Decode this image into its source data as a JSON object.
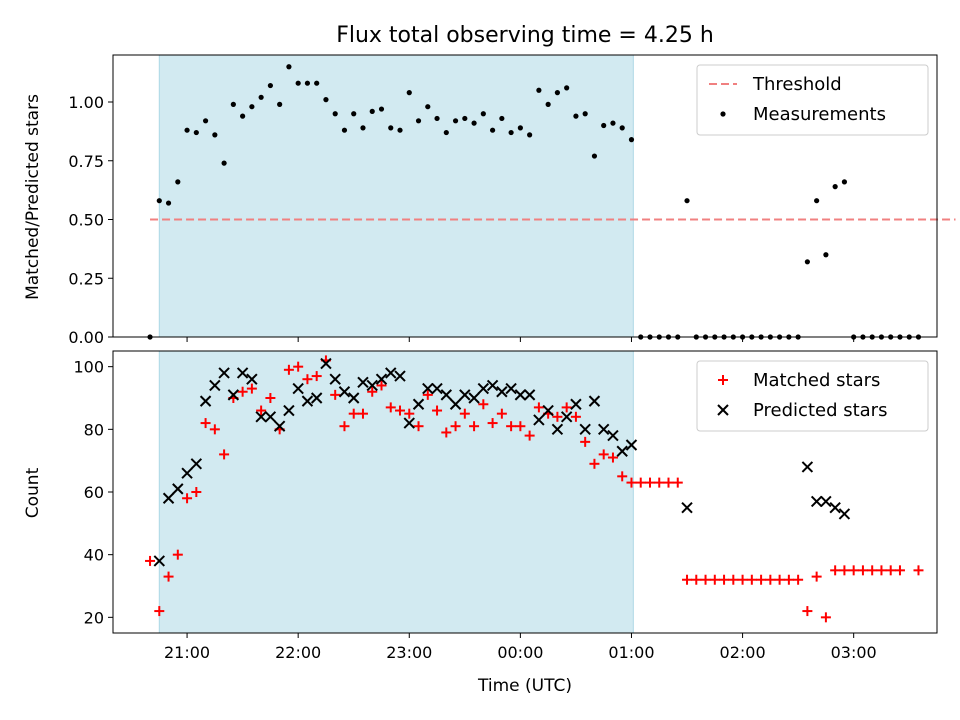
{
  "chart_data": {
    "title": "Flux total observing time = 4.25 h",
    "xlabel": "Time (UTC)",
    "x_ticks": [
      "21:00",
      "22:00",
      "23:00",
      "00:00",
      "01:00",
      "02:00",
      "03:00"
    ],
    "shaded_span": {
      "start": "20:45",
      "end": "01:01",
      "color": "#add8e6"
    },
    "grid": false,
    "panels": [
      {
        "type": "scatter",
        "ylabel": "Matched/Predicted stars",
        "ylim": [
          0,
          1.2
        ],
        "y_ticks": [
          "0.00",
          "0.25",
          "0.50",
          "0.75",
          "1.00"
        ],
        "legend_position": "top-right",
        "threshold": {
          "name": "Threshold",
          "value": 0.5,
          "x_range": [
            "20:40",
            "03:55"
          ],
          "color": "#f08080"
        },
        "series": [
          {
            "name": "Measurements",
            "color": "#000000",
            "points": [
              [
                "20:40",
                0.0
              ],
              [
                "20:45",
                0.58
              ],
              [
                "20:50",
                0.57
              ],
              [
                "20:55",
                0.66
              ],
              [
                "21:00",
                0.88
              ],
              [
                "21:05",
                0.87
              ],
              [
                "21:10",
                0.92
              ],
              [
                "21:15",
                0.86
              ],
              [
                "21:20",
                0.74
              ],
              [
                "21:25",
                0.99
              ],
              [
                "21:30",
                0.94
              ],
              [
                "21:35",
                0.98
              ],
              [
                "21:40",
                1.02
              ],
              [
                "21:45",
                1.07
              ],
              [
                "21:50",
                0.99
              ],
              [
                "21:55",
                1.15
              ],
              [
                "22:00",
                1.08
              ],
              [
                "22:05",
                1.08
              ],
              [
                "22:10",
                1.08
              ],
              [
                "22:15",
                1.01
              ],
              [
                "22:20",
                0.95
              ],
              [
                "22:25",
                0.88
              ],
              [
                "22:30",
                0.95
              ],
              [
                "22:35",
                0.89
              ],
              [
                "22:40",
                0.96
              ],
              [
                "22:45",
                0.97
              ],
              [
                "22:50",
                0.89
              ],
              [
                "22:55",
                0.88
              ],
              [
                "23:00",
                1.04
              ],
              [
                "23:05",
                0.92
              ],
              [
                "23:10",
                0.98
              ],
              [
                "23:15",
                0.93
              ],
              [
                "23:20",
                0.87
              ],
              [
                "23:25",
                0.92
              ],
              [
                "23:30",
                0.93
              ],
              [
                "23:35",
                0.91
              ],
              [
                "23:40",
                0.95
              ],
              [
                "23:45",
                0.88
              ],
              [
                "23:50",
                0.93
              ],
              [
                "23:55",
                0.87
              ],
              [
                "00:00",
                0.89
              ],
              [
                "00:05",
                0.86
              ],
              [
                "00:10",
                1.05
              ],
              [
                "00:15",
                0.99
              ],
              [
                "00:20",
                1.04
              ],
              [
                "00:25",
                1.06
              ],
              [
                "00:30",
                0.94
              ],
              [
                "00:35",
                0.95
              ],
              [
                "00:40",
                0.77
              ],
              [
                "00:45",
                0.9
              ],
              [
                "00:50",
                0.91
              ],
              [
                "00:55",
                0.89
              ],
              [
                "01:00",
                0.84
              ],
              [
                "01:05",
                0.0
              ],
              [
                "01:10",
                0.0
              ],
              [
                "01:15",
                0.0
              ],
              [
                "01:20",
                0.0
              ],
              [
                "01:25",
                0.0
              ],
              [
                "01:30",
                0.58
              ],
              [
                "01:35",
                0.0
              ],
              [
                "01:40",
                0.0
              ],
              [
                "01:45",
                0.0
              ],
              [
                "01:50",
                0.0
              ],
              [
                "01:55",
                0.0
              ],
              [
                "02:00",
                0.0
              ],
              [
                "02:05",
                0.0
              ],
              [
                "02:10",
                0.0
              ],
              [
                "02:15",
                0.0
              ],
              [
                "02:20",
                0.0
              ],
              [
                "02:25",
                0.0
              ],
              [
                "02:30",
                0.0
              ],
              [
                "02:35",
                0.32
              ],
              [
                "02:40",
                0.58
              ],
              [
                "02:45",
                0.35
              ],
              [
                "02:50",
                0.64
              ],
              [
                "02:55",
                0.66
              ],
              [
                "03:00",
                0.0
              ],
              [
                "03:05",
                0.0
              ],
              [
                "03:10",
                0.0
              ],
              [
                "03:15",
                0.0
              ],
              [
                "03:20",
                0.0
              ],
              [
                "03:25",
                0.0
              ],
              [
                "03:30",
                0.0
              ],
              [
                "03:35",
                0.0
              ]
            ]
          }
        ]
      },
      {
        "type": "scatter",
        "ylabel": "Count",
        "ylim": [
          15,
          105
        ],
        "y_ticks": [
          "20",
          "40",
          "60",
          "80",
          "100"
        ],
        "legend_position": "top-right",
        "series": [
          {
            "name": "Matched stars",
            "marker": "plus",
            "color": "#ff0000",
            "points": [
              [
                "20:40",
                38
              ],
              [
                "20:45",
                22
              ],
              [
                "20:50",
                33
              ],
              [
                "20:55",
                40
              ],
              [
                "21:00",
                58
              ],
              [
                "21:05",
                60
              ],
              [
                "21:10",
                82
              ],
              [
                "21:15",
                80
              ],
              [
                "21:20",
                72
              ],
              [
                "21:25",
                90
              ],
              [
                "21:30",
                92
              ],
              [
                "21:35",
                93
              ],
              [
                "21:40",
                86
              ],
              [
                "21:45",
                90
              ],
              [
                "21:50",
                80
              ],
              [
                "21:55",
                99
              ],
              [
                "22:00",
                100
              ],
              [
                "22:05",
                96
              ],
              [
                "22:10",
                97
              ],
              [
                "22:15",
                102
              ],
              [
                "22:20",
                91
              ],
              [
                "22:25",
                81
              ],
              [
                "22:30",
                85
              ],
              [
                "22:35",
                85
              ],
              [
                "22:40",
                92
              ],
              [
                "22:45",
                94
              ],
              [
                "22:50",
                87
              ],
              [
                "22:55",
                86
              ],
              [
                "23:00",
                85
              ],
              [
                "23:05",
                81
              ],
              [
                "23:10",
                91
              ],
              [
                "23:15",
                86
              ],
              [
                "23:20",
                79
              ],
              [
                "23:25",
                81
              ],
              [
                "23:30",
                85
              ],
              [
                "23:35",
                81
              ],
              [
                "23:40",
                88
              ],
              [
                "23:45",
                82
              ],
              [
                "23:50",
                85
              ],
              [
                "23:55",
                81
              ],
              [
                "00:00",
                81
              ],
              [
                "00:05",
                78
              ],
              [
                "00:10",
                87
              ],
              [
                "00:15",
                85
              ],
              [
                "00:20",
                84
              ],
              [
                "00:25",
                87
              ],
              [
                "00:30",
                84
              ],
              [
                "00:35",
                76
              ],
              [
                "00:40",
                69
              ],
              [
                "00:45",
                72
              ],
              [
                "00:50",
                71
              ],
              [
                "00:55",
                65
              ],
              [
                "01:00",
                63
              ],
              [
                "01:05",
                63
              ],
              [
                "01:10",
                63
              ],
              [
                "01:15",
                63
              ],
              [
                "01:20",
                63
              ],
              [
                "01:25",
                63
              ],
              [
                "01:30",
                32
              ],
              [
                "01:35",
                32
              ],
              [
                "01:40",
                32
              ],
              [
                "01:45",
                32
              ],
              [
                "01:50",
                32
              ],
              [
                "01:55",
                32
              ],
              [
                "02:00",
                32
              ],
              [
                "02:05",
                32
              ],
              [
                "02:10",
                32
              ],
              [
                "02:15",
                32
              ],
              [
                "02:20",
                32
              ],
              [
                "02:25",
                32
              ],
              [
                "02:30",
                32
              ],
              [
                "02:35",
                22
              ],
              [
                "02:40",
                33
              ],
              [
                "02:45",
                20
              ],
              [
                "02:50",
                35
              ],
              [
                "02:55",
                35
              ],
              [
                "03:00",
                35
              ],
              [
                "03:05",
                35
              ],
              [
                "03:10",
                35
              ],
              [
                "03:15",
                35
              ],
              [
                "03:20",
                35
              ],
              [
                "03:25",
                35
              ],
              [
                "03:35",
                35
              ]
            ]
          },
          {
            "name": "Predicted stars",
            "marker": "x",
            "color": "#000000",
            "points": [
              [
                "20:45",
                38
              ],
              [
                "20:50",
                58
              ],
              [
                "20:55",
                61
              ],
              [
                "21:00",
                66
              ],
              [
                "21:05",
                69
              ],
              [
                "21:10",
                89
              ],
              [
                "21:15",
                94
              ],
              [
                "21:20",
                98
              ],
              [
                "21:25",
                91
              ],
              [
                "21:30",
                98
              ],
              [
                "21:35",
                96
              ],
              [
                "21:40",
                84
              ],
              [
                "21:45",
                84
              ],
              [
                "21:50",
                81
              ],
              [
                "21:55",
                86
              ],
              [
                "22:00",
                93
              ],
              [
                "22:05",
                89
              ],
              [
                "22:10",
                90
              ],
              [
                "22:15",
                101
              ],
              [
                "22:20",
                96
              ],
              [
                "22:25",
                92
              ],
              [
                "22:30",
                90
              ],
              [
                "22:35",
                95
              ],
              [
                "22:40",
                94
              ],
              [
                "22:45",
                96
              ],
              [
                "22:50",
                98
              ],
              [
                "22:55",
                97
              ],
              [
                "23:00",
                82
              ],
              [
                "23:05",
                88
              ],
              [
                "23:10",
                93
              ],
              [
                "23:15",
                93
              ],
              [
                "23:20",
                91
              ],
              [
                "23:25",
                88
              ],
              [
                "23:30",
                91
              ],
              [
                "23:35",
                90
              ],
              [
                "23:40",
                93
              ],
              [
                "23:45",
                94
              ],
              [
                "23:50",
                92
              ],
              [
                "23:55",
                93
              ],
              [
                "00:00",
                91
              ],
              [
                "00:05",
                91
              ],
              [
                "00:10",
                83
              ],
              [
                "00:15",
                86
              ],
              [
                "00:20",
                80
              ],
              [
                "00:25",
                84
              ],
              [
                "00:30",
                88
              ],
              [
                "00:35",
                80
              ],
              [
                "00:40",
                89
              ],
              [
                "00:45",
                80
              ],
              [
                "00:50",
                78
              ],
              [
                "00:55",
                73
              ],
              [
                "01:00",
                75
              ],
              [
                "01:30",
                55
              ],
              [
                "02:35",
                68
              ],
              [
                "02:40",
                57
              ],
              [
                "02:45",
                57
              ],
              [
                "02:50",
                55
              ],
              [
                "02:55",
                53
              ]
            ]
          }
        ]
      }
    ]
  }
}
